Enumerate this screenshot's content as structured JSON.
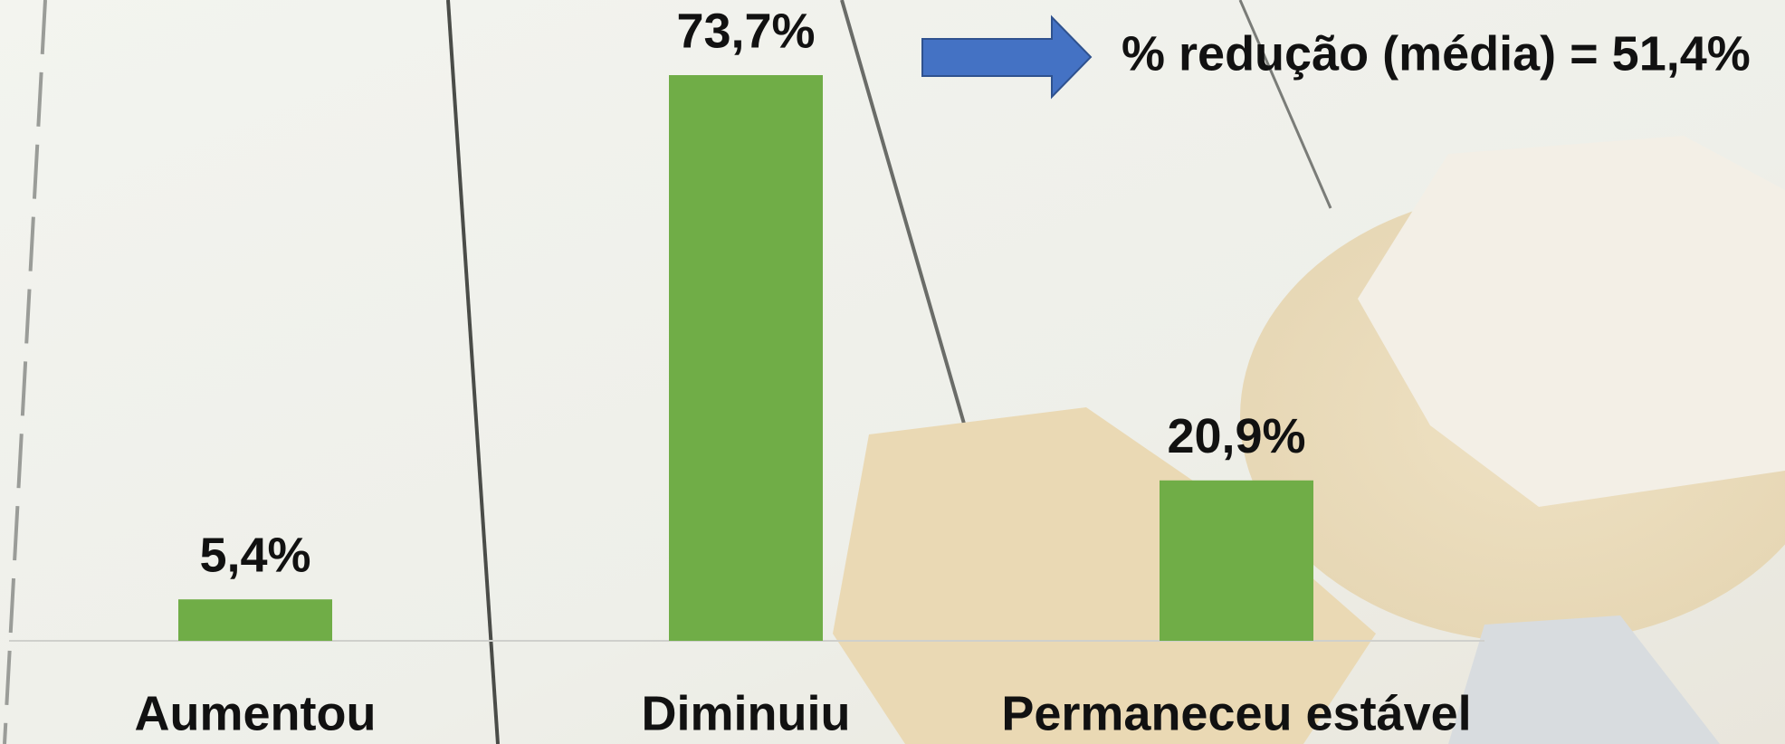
{
  "chart_data": {
    "type": "bar",
    "annotation": "% redução (média) = 51,4%",
    "categories": [
      "Aumentou",
      "Diminuiu",
      "Permaneceu estável"
    ],
    "values": [
      5.4,
      73.7,
      20.9
    ],
    "value_labels": [
      "5,4%",
      "73,7%",
      "20,9%"
    ],
    "color": "#70ad47"
  }
}
